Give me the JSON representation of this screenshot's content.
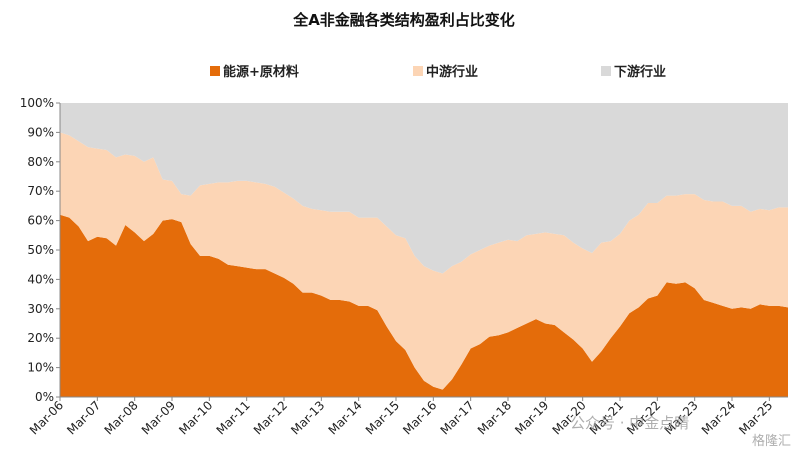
{
  "chart_data": {
    "type": "area",
    "stacked": true,
    "title": "全A非金融各类结构盈利占比变化",
    "xlabel": "",
    "ylabel": "",
    "ylim": [
      0,
      100
    ],
    "legend_position": "top",
    "grid": false,
    "y_ticks": [
      "0%",
      "10%",
      "20%",
      "30%",
      "40%",
      "50%",
      "60%",
      "70%",
      "80%",
      "90%",
      "100%"
    ],
    "x_tick_labels": [
      "Mar-06",
      "Mar-07",
      "Mar-08",
      "Mar-09",
      "Mar-10",
      "Mar-11",
      "Mar-12",
      "Mar-13",
      "Mar-14",
      "Mar-15",
      "Mar-16",
      "Mar-17",
      "Mar-18",
      "Mar-19",
      "Mar-20",
      "Mar-21",
      "Mar-22",
      "Mar-23",
      "Mar-24",
      "Mar-25"
    ],
    "x": [
      "Mar-06",
      "Jun-06",
      "Sep-06",
      "Dec-06",
      "Mar-07",
      "Jun-07",
      "Sep-07",
      "Dec-07",
      "Mar-08",
      "Jun-08",
      "Sep-08",
      "Dec-08",
      "Mar-09",
      "Jun-09",
      "Sep-09",
      "Dec-09",
      "Mar-10",
      "Jun-10",
      "Sep-10",
      "Dec-10",
      "Mar-11",
      "Jun-11",
      "Sep-11",
      "Dec-11",
      "Mar-12",
      "Jun-12",
      "Sep-12",
      "Dec-12",
      "Mar-13",
      "Jun-13",
      "Sep-13",
      "Dec-13",
      "Mar-14",
      "Jun-14",
      "Sep-14",
      "Dec-14",
      "Mar-15",
      "Jun-15",
      "Sep-15",
      "Dec-15",
      "Mar-16",
      "Jun-16",
      "Sep-16",
      "Dec-16",
      "Mar-17",
      "Jun-17",
      "Sep-17",
      "Dec-17",
      "Mar-18",
      "Jun-18",
      "Sep-18",
      "Dec-18",
      "Mar-19",
      "Jun-19",
      "Sep-19",
      "Dec-19",
      "Mar-20",
      "Jun-20",
      "Sep-20",
      "Dec-20",
      "Mar-21",
      "Jun-21",
      "Sep-21",
      "Dec-21",
      "Mar-22",
      "Jun-22",
      "Sep-22",
      "Dec-22",
      "Mar-23",
      "Jun-23",
      "Sep-23",
      "Dec-23",
      "Mar-24",
      "Jun-24",
      "Sep-24",
      "Dec-24",
      "Mar-25",
      "Jun-25",
      "Sep-25"
    ],
    "series": [
      {
        "name": "能源+原材料",
        "color": "#e46c0a",
        "values": [
          62,
          61,
          58,
          53,
          54.5,
          54,
          51.5,
          58.5,
          56,
          53,
          55.5,
          60,
          60.5,
          59.5,
          52,
          48,
          48,
          47,
          45,
          44.5,
          44,
          43.5,
          43.5,
          42,
          40.5,
          38.5,
          35.5,
          35.5,
          34.5,
          33,
          33,
          32.5,
          31,
          31,
          29.5,
          24,
          19,
          16,
          10,
          5.5,
          3.5,
          2.5,
          6,
          11,
          16.5,
          18,
          20.5,
          21,
          22,
          23.5,
          25,
          26.5,
          25,
          24.5,
          22,
          19.5,
          16.5,
          12,
          15.5,
          20,
          24,
          28.5,
          30.5,
          33.5,
          34.5,
          39,
          38.5,
          39,
          37,
          33,
          32,
          31,
          30,
          30.5,
          30,
          31.5,
          31,
          31,
          30.5
        ]
      },
      {
        "name": "中游行业",
        "color": "#fcd5b5",
        "values": [
          28,
          28,
          29,
          32,
          30,
          30,
          30,
          24,
          26,
          27,
          26,
          14,
          13,
          9.5,
          16.5,
          24,
          24.5,
          26,
          28,
          29,
          29.5,
          29.5,
          29,
          29.5,
          29,
          29,
          29.5,
          28.5,
          29,
          30,
          30,
          30.5,
          30,
          30,
          31.5,
          34,
          36,
          38,
          38,
          39,
          39.5,
          39.5,
          38.5,
          35,
          32,
          32,
          31,
          31.5,
          31.5,
          29.5,
          30,
          29,
          31,
          31,
          33,
          33,
          34,
          37,
          37,
          33,
          31.5,
          31.5,
          31.5,
          32.5,
          31.5,
          29.5,
          30,
          30,
          32,
          34,
          34.5,
          35.5,
          35,
          34.5,
          33,
          32.5,
          32.5,
          33.5,
          34
        ]
      },
      {
        "name": "下游行业",
        "color": "#d9d9d9",
        "values": [
          10,
          11,
          13,
          15,
          15.5,
          16,
          18.5,
          17.5,
          18,
          20,
          18.5,
          26,
          26.5,
          31,
          31.5,
          28,
          27.5,
          27,
          27,
          26.5,
          26.5,
          27,
          27.5,
          28.5,
          30.5,
          32.5,
          35,
          36,
          36.5,
          37,
          37,
          37,
          39,
          39,
          39,
          42,
          45,
          46,
          52,
          55.5,
          57,
          58,
          55.5,
          54,
          51.5,
          50,
          48.5,
          47.5,
          46.5,
          47,
          45,
          44.5,
          44,
          44.5,
          45,
          47.5,
          49.5,
          51,
          47.5,
          47,
          44.5,
          40,
          38,
          34,
          34,
          31.5,
          31.5,
          31,
          31,
          33,
          33.5,
          33.5,
          35,
          35,
          37,
          36,
          36.5,
          35.5,
          35.5
        ]
      }
    ]
  },
  "watermarks": {
    "wechat": "公众号 · 中金点睛",
    "logo": "格隆汇"
  }
}
